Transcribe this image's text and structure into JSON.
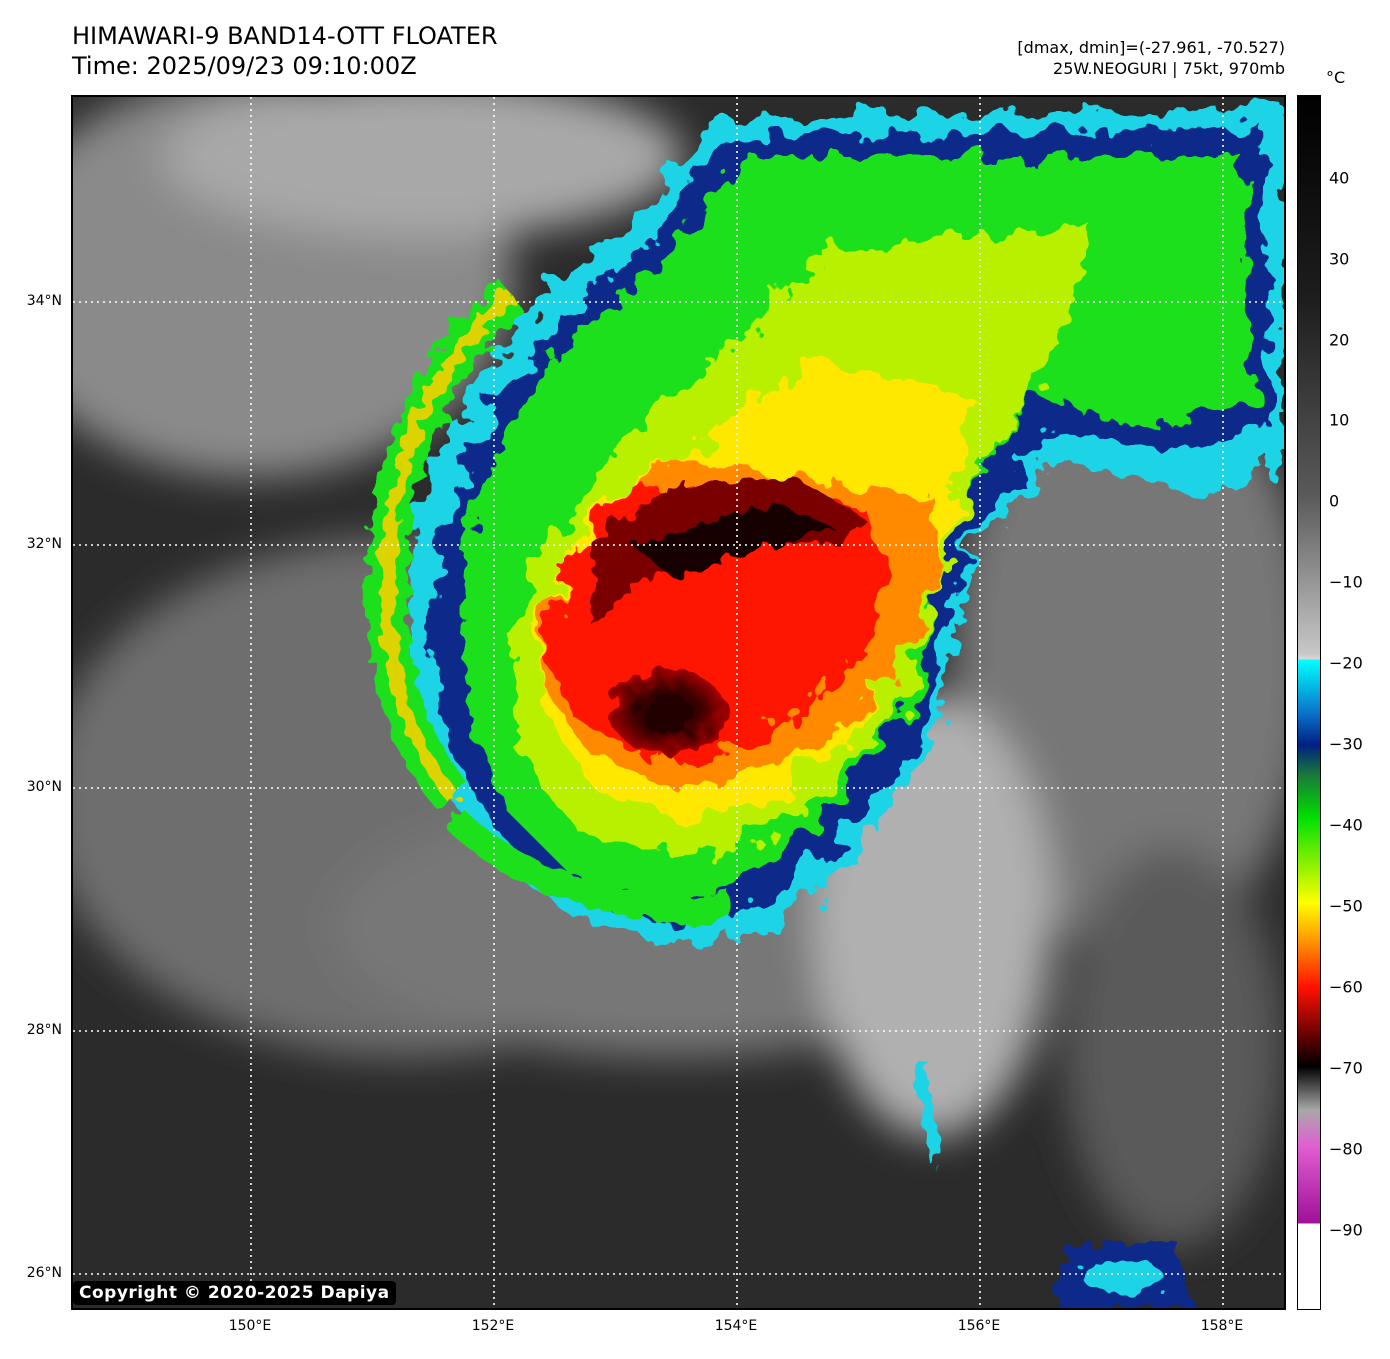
{
  "header": {
    "title": "HIMAWARI-9 BAND14-OTT FLOATER",
    "time": "Time: 2025/09/23 09:10:00Z",
    "range": "[dmax, dmin]=(-27.961, -70.527)",
    "storm": "25W.NEOGURI | 75kt, 970mb"
  },
  "map": {
    "lat_labels": [
      "34°N",
      "32°N",
      "30°N",
      "28°N",
      "26°N"
    ],
    "lon_labels": [
      "150°E",
      "152°E",
      "154°E",
      "156°E",
      "158°E"
    ],
    "copyright": "Copyright © 2020-2025 Dapiya"
  },
  "colorbar": {
    "unit": "°C",
    "tick_labels": [
      "40",
      "30",
      "20",
      "10",
      "0",
      "−10",
      "−20",
      "−30",
      "−40",
      "−50",
      "−60",
      "−70",
      "−80",
      "−90"
    ],
    "colors": {
      "warm": "#000000",
      "neutral": "#c8c8c8",
      "cyan": "#00ffff",
      "blue": "#002080",
      "green": "#00e000",
      "yellow": "#ffff00",
      "red": "#ff1000",
      "dark_red": "#500000",
      "magenta": "#a0109a"
    }
  }
}
